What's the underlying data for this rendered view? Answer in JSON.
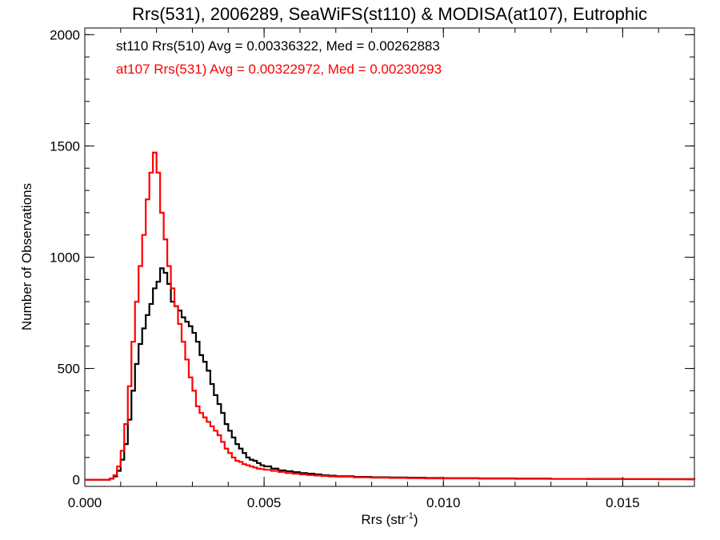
{
  "chart_data": {
    "type": "line",
    "title": "Rrs(531), 2006289, SeaWiFS(st110) & MODISA(at107), Eutrophic",
    "xlabel_main": "Rrs (str",
    "xlabel_sup": "-1",
    "xlabel_close": ")",
    "ylabel": "Number of Observations",
    "xlim": [
      0.0,
      0.017
    ],
    "ylim": [
      -30,
      2030
    ],
    "x_ticks": [
      {
        "value": 0.0,
        "label": "0.000"
      },
      {
        "value": 0.005,
        "label": "0.005"
      },
      {
        "value": 0.01,
        "label": "0.010"
      },
      {
        "value": 0.015,
        "label": "0.015"
      }
    ],
    "x_minor_step": 0.001,
    "y_ticks": [
      {
        "value": 0,
        "label": "0"
      },
      {
        "value": 500,
        "label": "500"
      },
      {
        "value": 1000,
        "label": "1000"
      },
      {
        "value": 1500,
        "label": "1500"
      },
      {
        "value": 2000,
        "label": "2000"
      }
    ],
    "y_minor_step": 100,
    "grid": false,
    "legend_position": "top-left",
    "series": [
      {
        "name": "st110 Rrs(510) Avg = 0.00336322, Med = 0.00262883",
        "color": "#000000",
        "x": [
          0.0,
          0.0005,
          0.0007,
          0.0008,
          0.0009,
          0.001,
          0.0011,
          0.0012,
          0.0013,
          0.0014,
          0.0015,
          0.0016,
          0.0017,
          0.0018,
          0.0019,
          0.002,
          0.0021,
          0.0022,
          0.0023,
          0.0024,
          0.0025,
          0.0026,
          0.0027,
          0.0028,
          0.0029,
          0.003,
          0.0031,
          0.0032,
          0.0033,
          0.0034,
          0.0035,
          0.0036,
          0.0037,
          0.0038,
          0.0039,
          0.004,
          0.0041,
          0.0042,
          0.0043,
          0.0044,
          0.0045,
          0.0046,
          0.0047,
          0.0048,
          0.0049,
          0.005,
          0.0052,
          0.0054,
          0.0056,
          0.0058,
          0.006,
          0.0062,
          0.0064,
          0.0066,
          0.0068,
          0.007,
          0.0075,
          0.008,
          0.0085,
          0.009,
          0.0095,
          0.01,
          0.011,
          0.012,
          0.013,
          0.014,
          0.015,
          0.016,
          0.017
        ],
        "y": [
          0,
          0,
          5,
          15,
          40,
          90,
          160,
          270,
          400,
          520,
          610,
          680,
          740,
          790,
          860,
          890,
          950,
          930,
          880,
          800,
          780,
          760,
          730,
          710,
          690,
          660,
          620,
          560,
          530,
          490,
          430,
          380,
          340,
          300,
          250,
          220,
          190,
          160,
          140,
          120,
          100,
          90,
          85,
          75,
          65,
          60,
          50,
          42,
          38,
          34,
          30,
          27,
          24,
          20,
          18,
          16,
          13,
          11,
          10,
          9,
          8,
          7,
          6,
          5,
          4,
          4,
          3,
          3,
          2
        ]
      },
      {
        "name": "at107 Rrs(531) Avg = 0.00322972, Med = 0.00230293",
        "color": "#ff0000",
        "x": [
          0.0,
          0.0005,
          0.0007,
          0.0008,
          0.0009,
          0.001,
          0.0011,
          0.0012,
          0.0013,
          0.0014,
          0.0015,
          0.0016,
          0.0017,
          0.0018,
          0.0019,
          0.002,
          0.0021,
          0.0022,
          0.0023,
          0.0024,
          0.0025,
          0.0026,
          0.0027,
          0.0028,
          0.0029,
          0.003,
          0.0031,
          0.0032,
          0.0033,
          0.0034,
          0.0035,
          0.0036,
          0.0037,
          0.0038,
          0.0039,
          0.004,
          0.0041,
          0.0042,
          0.0043,
          0.0044,
          0.0045,
          0.0046,
          0.0047,
          0.0048,
          0.0049,
          0.005,
          0.0052,
          0.0054,
          0.0056,
          0.0058,
          0.006,
          0.0062,
          0.0064,
          0.0066,
          0.0068,
          0.007,
          0.0075,
          0.008,
          0.0085,
          0.009,
          0.0095,
          0.01,
          0.011,
          0.012,
          0.013,
          0.014,
          0.015,
          0.016,
          0.017
        ],
        "y": [
          0,
          0,
          5,
          20,
          60,
          130,
          250,
          420,
          620,
          800,
          960,
          1100,
          1260,
          1380,
          1470,
          1380,
          1200,
          1080,
          960,
          860,
          780,
          700,
          620,
          540,
          460,
          400,
          330,
          300,
          280,
          260,
          240,
          220,
          200,
          170,
          140,
          120,
          100,
          85,
          80,
          70,
          65,
          60,
          55,
          50,
          48,
          45,
          40,
          35,
          30,
          27,
          24,
          21,
          19,
          17,
          15,
          14,
          11,
          9,
          8,
          7,
          6,
          6,
          5,
          4,
          4,
          3,
          3,
          2,
          2
        ]
      }
    ]
  }
}
